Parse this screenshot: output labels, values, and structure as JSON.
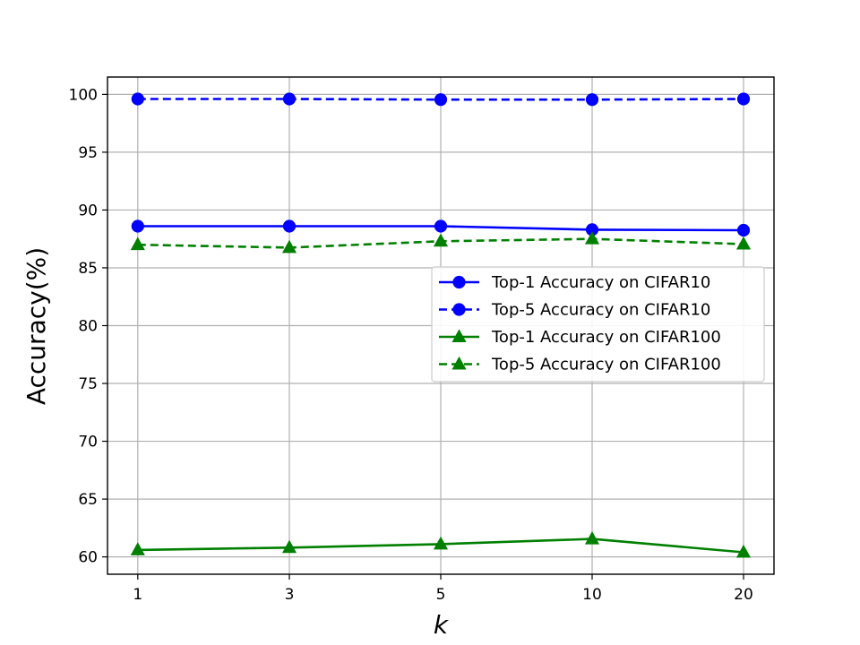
{
  "chart_data": {
    "type": "line",
    "title": "",
    "xlabel": "k",
    "ylabel": "Accuracy(%)",
    "categories": [
      "1",
      "3",
      "5",
      "10",
      "20"
    ],
    "ylim": [
      58.5,
      101.5
    ],
    "yticks": [
      60,
      65,
      70,
      75,
      80,
      85,
      90,
      95,
      100
    ],
    "grid": true,
    "legend_position": "center-right",
    "series": [
      {
        "name": "Top-1 Accuracy on CIFAR10",
        "values": [
          88.6,
          88.6,
          88.6,
          88.3,
          88.25
        ],
        "color": "#0000ff",
        "marker": "circle",
        "line_style": "solid"
      },
      {
        "name": "Top-5 Accuracy on CIFAR10",
        "values": [
          99.6,
          99.6,
          99.55,
          99.55,
          99.6
        ],
        "color": "#0000ff",
        "marker": "circle",
        "line_style": "dashed"
      },
      {
        "name": "Top-1 Accuracy on CIFAR100",
        "values": [
          60.6,
          60.8,
          61.1,
          61.55,
          60.4
        ],
        "color": "#008000",
        "marker": "triangle",
        "line_style": "solid"
      },
      {
        "name": "Top-5 Accuracy on CIFAR100",
        "values": [
          87.0,
          86.75,
          87.3,
          87.5,
          87.05
        ],
        "color": "#008000",
        "marker": "triangle",
        "line_style": "dashed"
      }
    ]
  }
}
